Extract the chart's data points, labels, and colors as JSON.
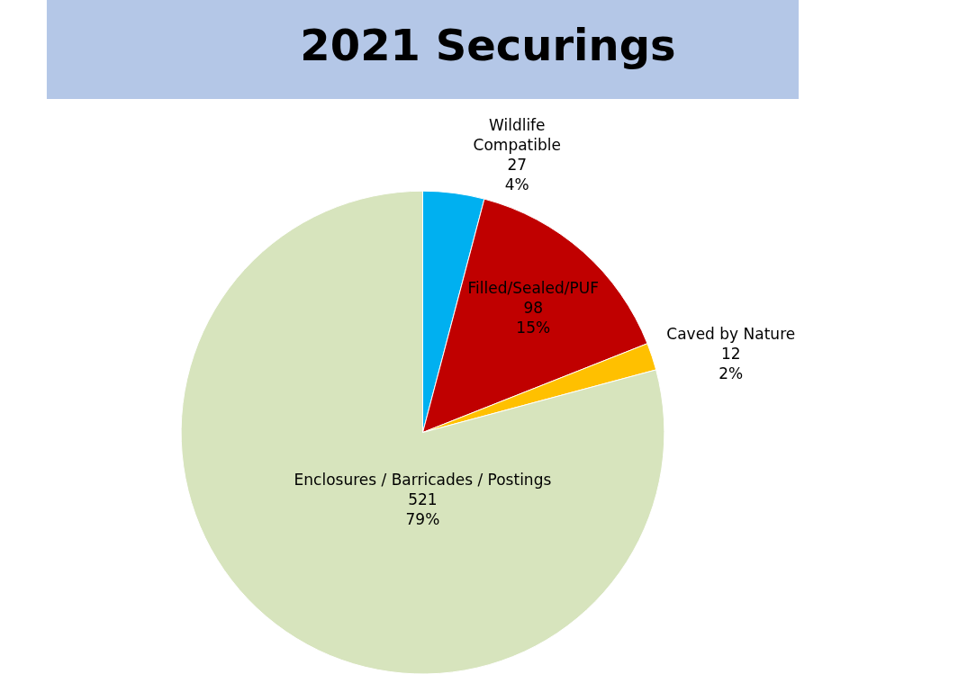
{
  "chart_data": {
    "type": "pie",
    "title": "2021 Securings",
    "categories": [
      "Wildlife\nCompatible",
      "Filled/Sealed/PUF",
      "Caved by Nature",
      "Enclosures / Barricades / Postings"
    ],
    "values": [
      27,
      98,
      12,
      521
    ],
    "value_labels": [
      "27\n4%",
      "98\n15%",
      "12\n2%",
      "521\n79%"
    ],
    "colors": [
      "#00b0f0",
      "#c00000",
      "#ffc000",
      "#d7e4bd"
    ],
    "legend": false
  }
}
